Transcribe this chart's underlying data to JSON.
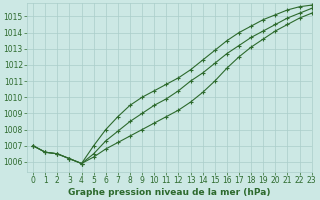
{
  "hours": [
    0,
    1,
    2,
    3,
    4,
    5,
    6,
    7,
    8,
    9,
    10,
    11,
    12,
    13,
    14,
    15,
    16,
    17,
    18,
    19,
    20,
    21,
    22,
    23
  ],
  "line_bottom": [
    1007.0,
    1006.6,
    1006.5,
    1006.2,
    1005.9,
    1006.3,
    1006.8,
    1007.2,
    1007.6,
    1008.0,
    1008.4,
    1008.8,
    1009.2,
    1009.7,
    1010.3,
    1011.0,
    1011.8,
    1012.5,
    1013.1,
    1013.6,
    1014.1,
    1014.5,
    1014.9,
    1015.2
  ],
  "line_mid": [
    1007.0,
    1006.6,
    1006.5,
    1006.2,
    1005.9,
    1006.5,
    1007.3,
    1007.9,
    1008.5,
    1009.0,
    1009.5,
    1009.9,
    1010.4,
    1011.0,
    1011.5,
    1012.1,
    1012.7,
    1013.2,
    1013.7,
    1014.1,
    1014.5,
    1014.9,
    1015.2,
    1015.5
  ],
  "line_top": [
    1007.0,
    1006.6,
    1006.5,
    1006.2,
    1005.9,
    1007.0,
    1008.0,
    1008.8,
    1009.5,
    1010.0,
    1010.4,
    1010.8,
    1011.2,
    1011.7,
    1012.3,
    1012.9,
    1013.5,
    1014.0,
    1014.4,
    1014.8,
    1015.1,
    1015.4,
    1015.6,
    1015.7
  ],
  "line_color": "#2d6a2d",
  "bg_color": "#cce8e4",
  "grid_color": "#aaceca",
  "xlabel": "Graphe pression niveau de la mer (hPa)",
  "ylim_min": 1005.4,
  "ylim_max": 1015.8,
  "xlim_min": -0.5,
  "xlim_max": 23.0,
  "yticks": [
    1006,
    1007,
    1008,
    1009,
    1010,
    1011,
    1012,
    1013,
    1014,
    1015
  ],
  "xticks": [
    0,
    1,
    2,
    3,
    4,
    5,
    6,
    7,
    8,
    9,
    10,
    11,
    12,
    13,
    14,
    15,
    16,
    17,
    18,
    19,
    20,
    21,
    22,
    23
  ],
  "marker": "+",
  "markersize": 3.5,
  "linewidth": 0.8,
  "tick_fontsize": 5.5,
  "xlabel_fontsize": 6.5
}
